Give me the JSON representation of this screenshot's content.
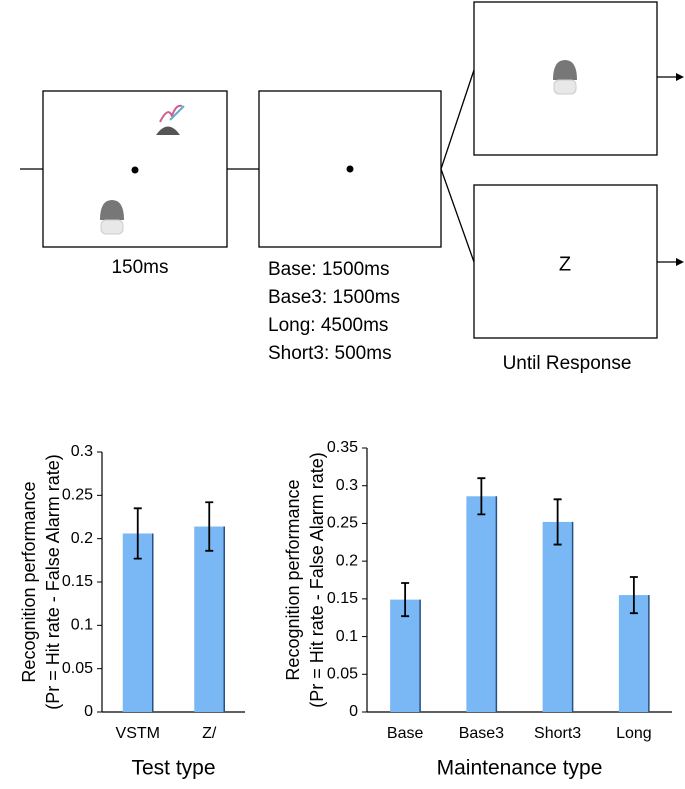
{
  "diagram": {
    "labels": [
      "150ms",
      "Base: 1500ms",
      "Base3: 1500ms",
      "Long: 4500ms",
      "Short3: 500ms",
      "Z",
      "Until Response"
    ]
  },
  "chart_data": [
    {
      "type": "bar",
      "y_label": [
        "Recognition performance",
        "(Pr = Hit rate - False Alarm rate)"
      ],
      "x_label": "Test type",
      "categories": [
        "VSTM",
        "Z/"
      ],
      "values": [
        0.206,
        0.214
      ],
      "errors": [
        0.029,
        0.028
      ],
      "color": "#7ab8f5",
      "ylim": [
        0,
        0.3
      ],
      "yticks": [
        0,
        0.05,
        0.1,
        0.15,
        0.2,
        0.25,
        0.3
      ]
    },
    {
      "type": "bar",
      "y_label": [
        "Recognition performance",
        "(Pr = Hit rate - False Alarm rate)"
      ],
      "x_label": "Maintenance type",
      "categories": [
        "Base",
        "Base3",
        "Short3",
        "Long"
      ],
      "values": [
        0.149,
        0.286,
        0.252,
        0.155
      ],
      "errors": [
        0.022,
        0.024,
        0.03,
        0.024
      ],
      "color": "#7ab8f5",
      "ylim": [
        0,
        0.35
      ],
      "yticks": [
        0,
        0.05,
        0.1,
        0.15,
        0.2,
        0.25,
        0.3,
        0.35
      ]
    }
  ]
}
